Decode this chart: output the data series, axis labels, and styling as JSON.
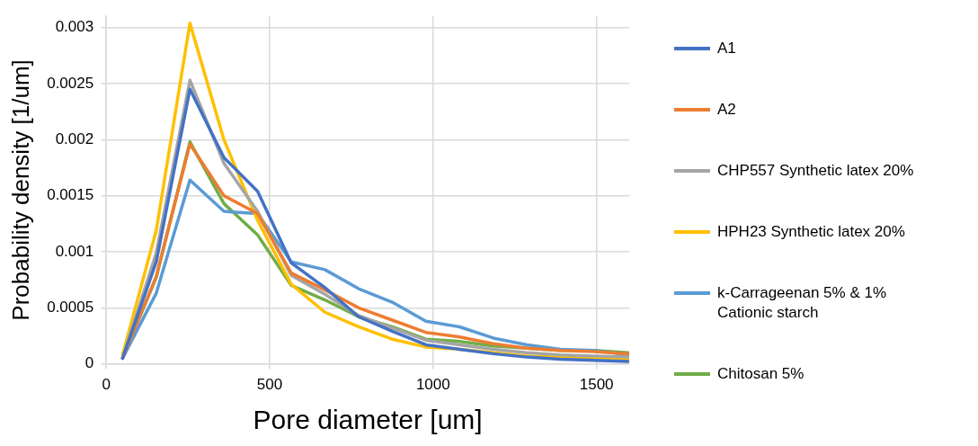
{
  "chart_data": {
    "type": "line",
    "xlabel": "Pore diameter [um]",
    "ylabel": "Probability density [1/um]",
    "x": [
      50,
      153,
      256,
      360,
      463,
      566,
      669,
      772,
      875,
      978,
      1081,
      1184,
      1287,
      1390,
      1493,
      1596
    ],
    "xlim": [
      0,
      1600
    ],
    "xticks": [
      0,
      500,
      1000,
      1500
    ],
    "ylim": [
      0,
      0.0031
    ],
    "yticks": [
      0,
      0.0005,
      0.001,
      0.0015,
      0.002,
      0.0025,
      0.003
    ],
    "grid": true,
    "legend": "right",
    "marker": "none",
    "line_style": "solid",
    "series": [
      {
        "name": "A1",
        "color": "#4472c4",
        "values": [
          5e-05,
          0.00091,
          0.00245,
          0.00184,
          0.00154,
          0.0009,
          0.00068,
          0.00042,
          0.00029,
          0.00017,
          0.00013,
          9e-05,
          6e-05,
          4e-05,
          3e-05,
          2e-05
        ]
      },
      {
        "name": "A2",
        "color": "#ed7d31",
        "values": [
          5e-05,
          0.00078,
          0.00196,
          0.0015,
          0.00134,
          0.00081,
          0.00066,
          0.0005,
          0.00039,
          0.00028,
          0.00024,
          0.00018,
          0.00014,
          0.00012,
          0.00011,
          9e-05
        ]
      },
      {
        "name": "CHP557 Synthetic latex 20%",
        "color": "#a5a5a5",
        "values": [
          5e-05,
          0.00099,
          0.00253,
          0.00179,
          0.00136,
          0.00079,
          0.00062,
          0.00043,
          0.00032,
          0.00021,
          0.00017,
          0.00013,
          0.0001,
          8e-05,
          7e-05,
          6e-05
        ]
      },
      {
        "name": "HPH23 Synthetic latex 20%",
        "color": "#ffc000",
        "values": [
          8e-05,
          0.00119,
          0.00304,
          0.002,
          0.00128,
          0.00071,
          0.00046,
          0.00033,
          0.00022,
          0.00015,
          0.00013,
          0.0001,
          7e-05,
          6e-05,
          5e-05,
          4e-05
        ]
      },
      {
        "name": "k-Carrageenan 5% & 1% Cationic starch",
        "color": "#5b9bd5",
        "values": [
          5e-05,
          0.00063,
          0.00164,
          0.00136,
          0.00134,
          0.00091,
          0.00084,
          0.00067,
          0.00055,
          0.00038,
          0.00033,
          0.00023,
          0.00017,
          0.00013,
          0.00012,
          8e-05
        ]
      },
      {
        "name": "Chitosan 5%",
        "color": "#70ad47",
        "values": [
          5e-05,
          0.00077,
          0.00198,
          0.00143,
          0.00115,
          0.0007,
          0.00057,
          0.00042,
          0.00033,
          0.00022,
          0.0002,
          0.00016,
          0.00014,
          0.00012,
          0.00012,
          0.0001
        ]
      }
    ]
  }
}
